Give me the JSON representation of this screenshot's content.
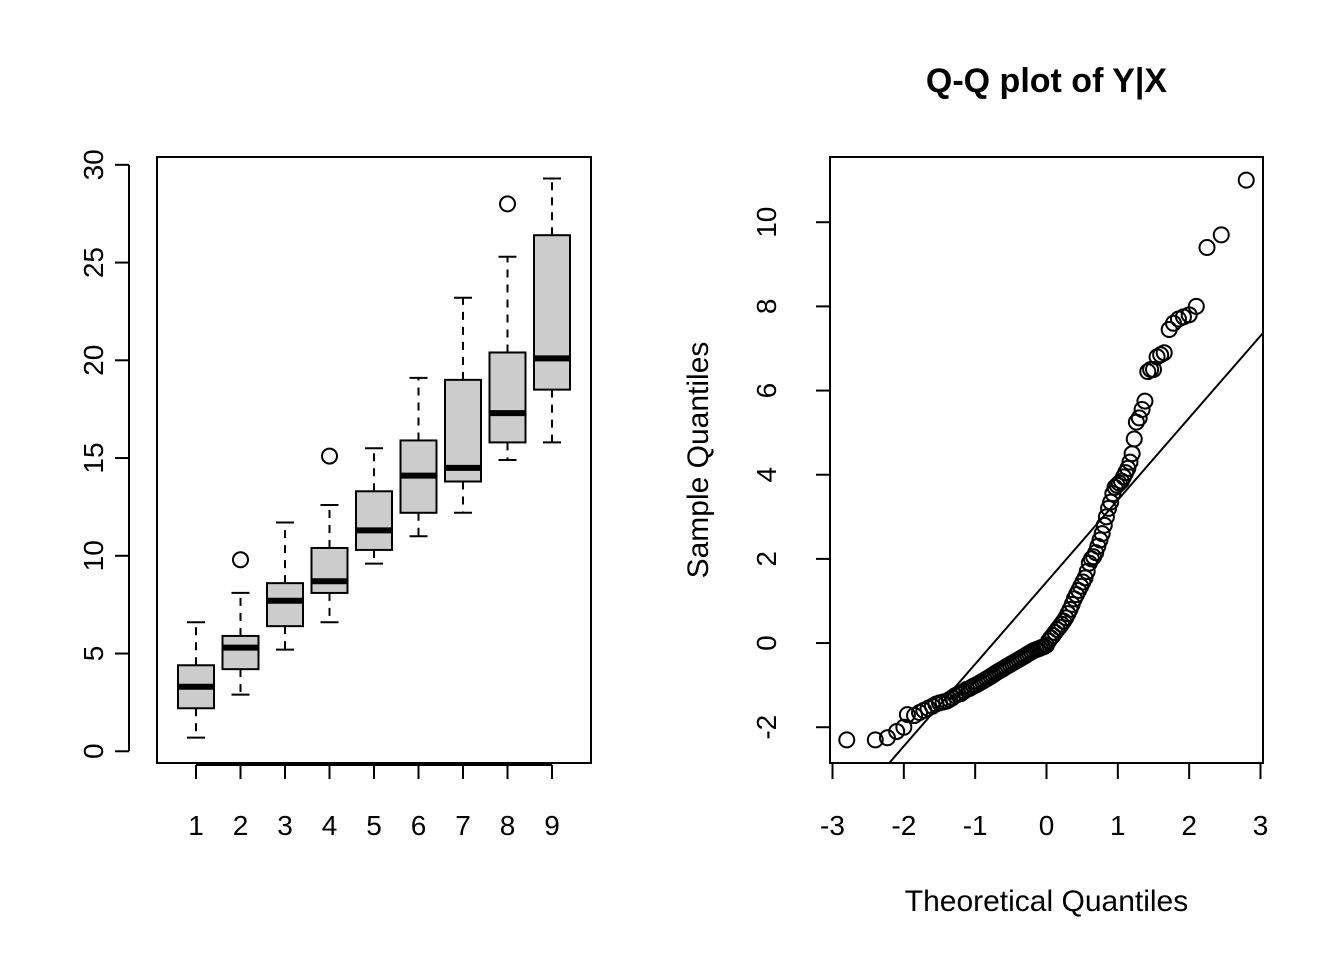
{
  "chart_data": [
    {
      "type": "boxplot",
      "title": "",
      "xlabel": "",
      "ylabel": "",
      "categories": [
        "1",
        "2",
        "3",
        "4",
        "5",
        "6",
        "7",
        "8",
        "9"
      ],
      "yticks": [
        0,
        5,
        10,
        15,
        20,
        25,
        30
      ],
      "ylim": [
        -0.6,
        30.4
      ],
      "box_fill": "#cccccc",
      "boxes": [
        {
          "min": 0.7,
          "q1": 2.2,
          "median": 3.3,
          "q3": 4.4,
          "max": 6.6,
          "outliers": []
        },
        {
          "min": 2.9,
          "q1": 4.2,
          "median": 5.3,
          "q3": 5.9,
          "max": 8.1,
          "outliers": [
            9.8
          ]
        },
        {
          "min": 5.2,
          "q1": 6.4,
          "median": 7.7,
          "q3": 8.6,
          "max": 11.7,
          "outliers": []
        },
        {
          "min": 6.6,
          "q1": 8.1,
          "median": 8.7,
          "q3": 10.4,
          "max": 12.6,
          "outliers": [
            15.1
          ]
        },
        {
          "min": 9.6,
          "q1": 10.3,
          "median": 11.3,
          "q3": 13.3,
          "max": 15.5,
          "outliers": []
        },
        {
          "min": 11.0,
          "q1": 12.2,
          "median": 14.1,
          "q3": 15.9,
          "max": 19.1,
          "outliers": []
        },
        {
          "min": 12.2,
          "q1": 13.8,
          "median": 14.5,
          "q3": 19.0,
          "max": 23.2,
          "outliers": []
        },
        {
          "min": 14.9,
          "q1": 15.8,
          "median": 17.3,
          "q3": 20.4,
          "max": 25.3,
          "outliers": [
            28.0
          ]
        },
        {
          "min": 15.8,
          "q1": 18.5,
          "median": 20.1,
          "q3": 26.4,
          "max": 29.3,
          "outliers": []
        }
      ]
    },
    {
      "type": "scatter",
      "title": "Q-Q plot of Y|X",
      "xlabel": "Theoretical Quantiles",
      "ylabel": "Sample Quantiles",
      "xticks": [
        -3,
        -2,
        -1,
        0,
        1,
        2,
        3
      ],
      "yticks": [
        -2,
        0,
        2,
        4,
        6,
        8,
        10
      ],
      "xlim": [
        -3.0,
        3.0
      ],
      "ylim": [
        -2.85,
        11.55
      ],
      "reference_line": {
        "intercept": 1.45,
        "slope": 1.95
      },
      "points": [
        [
          -2.8,
          -2.3
        ],
        [
          -2.4,
          -2.3
        ],
        [
          -2.23,
          -2.25
        ],
        [
          -2.1,
          -2.1
        ],
        [
          -2.0,
          -2.0
        ],
        [
          -1.95,
          -1.7
        ],
        [
          -1.85,
          -1.72
        ],
        [
          -1.78,
          -1.65
        ],
        [
          -1.72,
          -1.6
        ],
        [
          -1.66,
          -1.55
        ],
        [
          -1.6,
          -1.5
        ],
        [
          -1.55,
          -1.45
        ],
        [
          -1.5,
          -1.42
        ],
        [
          -1.45,
          -1.4
        ],
        [
          -1.4,
          -1.38
        ],
        [
          -1.36,
          -1.34
        ],
        [
          -1.32,
          -1.3
        ],
        [
          -1.28,
          -1.25
        ],
        [
          -1.24,
          -1.22
        ],
        [
          -1.2,
          -1.2
        ],
        [
          -1.16,
          -1.15
        ],
        [
          -1.12,
          -1.1
        ],
        [
          -1.08,
          -1.08
        ],
        [
          -1.05,
          -1.05
        ],
        [
          -1.02,
          -1.02
        ],
        [
          -0.99,
          -1.0
        ],
        [
          -0.96,
          -0.97
        ],
        [
          -0.93,
          -0.94
        ],
        [
          -0.9,
          -0.91
        ],
        [
          -0.87,
          -0.88
        ],
        [
          -0.84,
          -0.85
        ],
        [
          -0.81,
          -0.82
        ],
        [
          -0.78,
          -0.79
        ],
        [
          -0.75,
          -0.76
        ],
        [
          -0.72,
          -0.72
        ],
        [
          -0.69,
          -0.69
        ],
        [
          -0.66,
          -0.66
        ],
        [
          -0.63,
          -0.63
        ],
        [
          -0.6,
          -0.6
        ],
        [
          -0.57,
          -0.57
        ],
        [
          -0.54,
          -0.54
        ],
        [
          -0.51,
          -0.51
        ],
        [
          -0.48,
          -0.48
        ],
        [
          -0.45,
          -0.45
        ],
        [
          -0.42,
          -0.42
        ],
        [
          -0.39,
          -0.39
        ],
        [
          -0.36,
          -0.36
        ],
        [
          -0.33,
          -0.33
        ],
        [
          -0.3,
          -0.3
        ],
        [
          -0.27,
          -0.27
        ],
        [
          -0.24,
          -0.24
        ],
        [
          -0.21,
          -0.21
        ],
        [
          -0.18,
          -0.18
        ],
        [
          -0.15,
          -0.16
        ],
        [
          -0.12,
          -0.14
        ],
        [
          -0.09,
          -0.12
        ],
        [
          -0.06,
          -0.1
        ],
        [
          -0.03,
          -0.08
        ],
        [
          0.0,
          -0.05
        ],
        [
          0.03,
          0.05
        ],
        [
          0.06,
          0.12
        ],
        [
          0.09,
          0.18
        ],
        [
          0.12,
          0.25
        ],
        [
          0.15,
          0.32
        ],
        [
          0.18,
          0.38
        ],
        [
          0.21,
          0.45
        ],
        [
          0.24,
          0.52
        ],
        [
          0.27,
          0.6
        ],
        [
          0.3,
          0.7
        ],
        [
          0.33,
          0.8
        ],
        [
          0.36,
          0.92
        ],
        [
          0.39,
          1.05
        ],
        [
          0.42,
          1.15
        ],
        [
          0.45,
          1.25
        ],
        [
          0.48,
          1.35
        ],
        [
          0.51,
          1.45
        ],
        [
          0.54,
          1.55
        ],
        [
          0.57,
          1.7
        ],
        [
          0.6,
          1.9
        ],
        [
          0.63,
          2.0
        ],
        [
          0.66,
          2.05
        ],
        [
          0.69,
          2.15
        ],
        [
          0.72,
          2.3
        ],
        [
          0.75,
          2.45
        ],
        [
          0.78,
          2.6
        ],
        [
          0.81,
          2.8
        ],
        [
          0.84,
          3.0
        ],
        [
          0.87,
          3.2
        ],
        [
          0.9,
          3.35
        ],
        [
          0.93,
          3.55
        ],
        [
          0.96,
          3.7
        ],
        [
          0.99,
          3.75
        ],
        [
          1.02,
          3.8
        ],
        [
          1.05,
          3.85
        ],
        [
          1.08,
          3.95
        ],
        [
          1.11,
          4.05
        ],
        [
          1.14,
          4.15
        ],
        [
          1.17,
          4.3
        ],
        [
          1.2,
          4.5
        ],
        [
          1.23,
          4.85
        ],
        [
          1.26,
          5.25
        ],
        [
          1.3,
          5.35
        ],
        [
          1.34,
          5.55
        ],
        [
          1.38,
          5.75
        ],
        [
          1.42,
          6.45
        ],
        [
          1.46,
          6.5
        ],
        [
          1.5,
          6.5
        ],
        [
          1.55,
          6.8
        ],
        [
          1.6,
          6.85
        ],
        [
          1.65,
          6.9
        ],
        [
          1.72,
          7.45
        ],
        [
          1.78,
          7.6
        ],
        [
          1.85,
          7.7
        ],
        [
          1.92,
          7.75
        ],
        [
          2.0,
          7.8
        ],
        [
          2.1,
          8.0
        ],
        [
          2.25,
          9.4
        ],
        [
          2.45,
          9.7
        ],
        [
          2.8,
          11.0
        ]
      ]
    }
  ]
}
